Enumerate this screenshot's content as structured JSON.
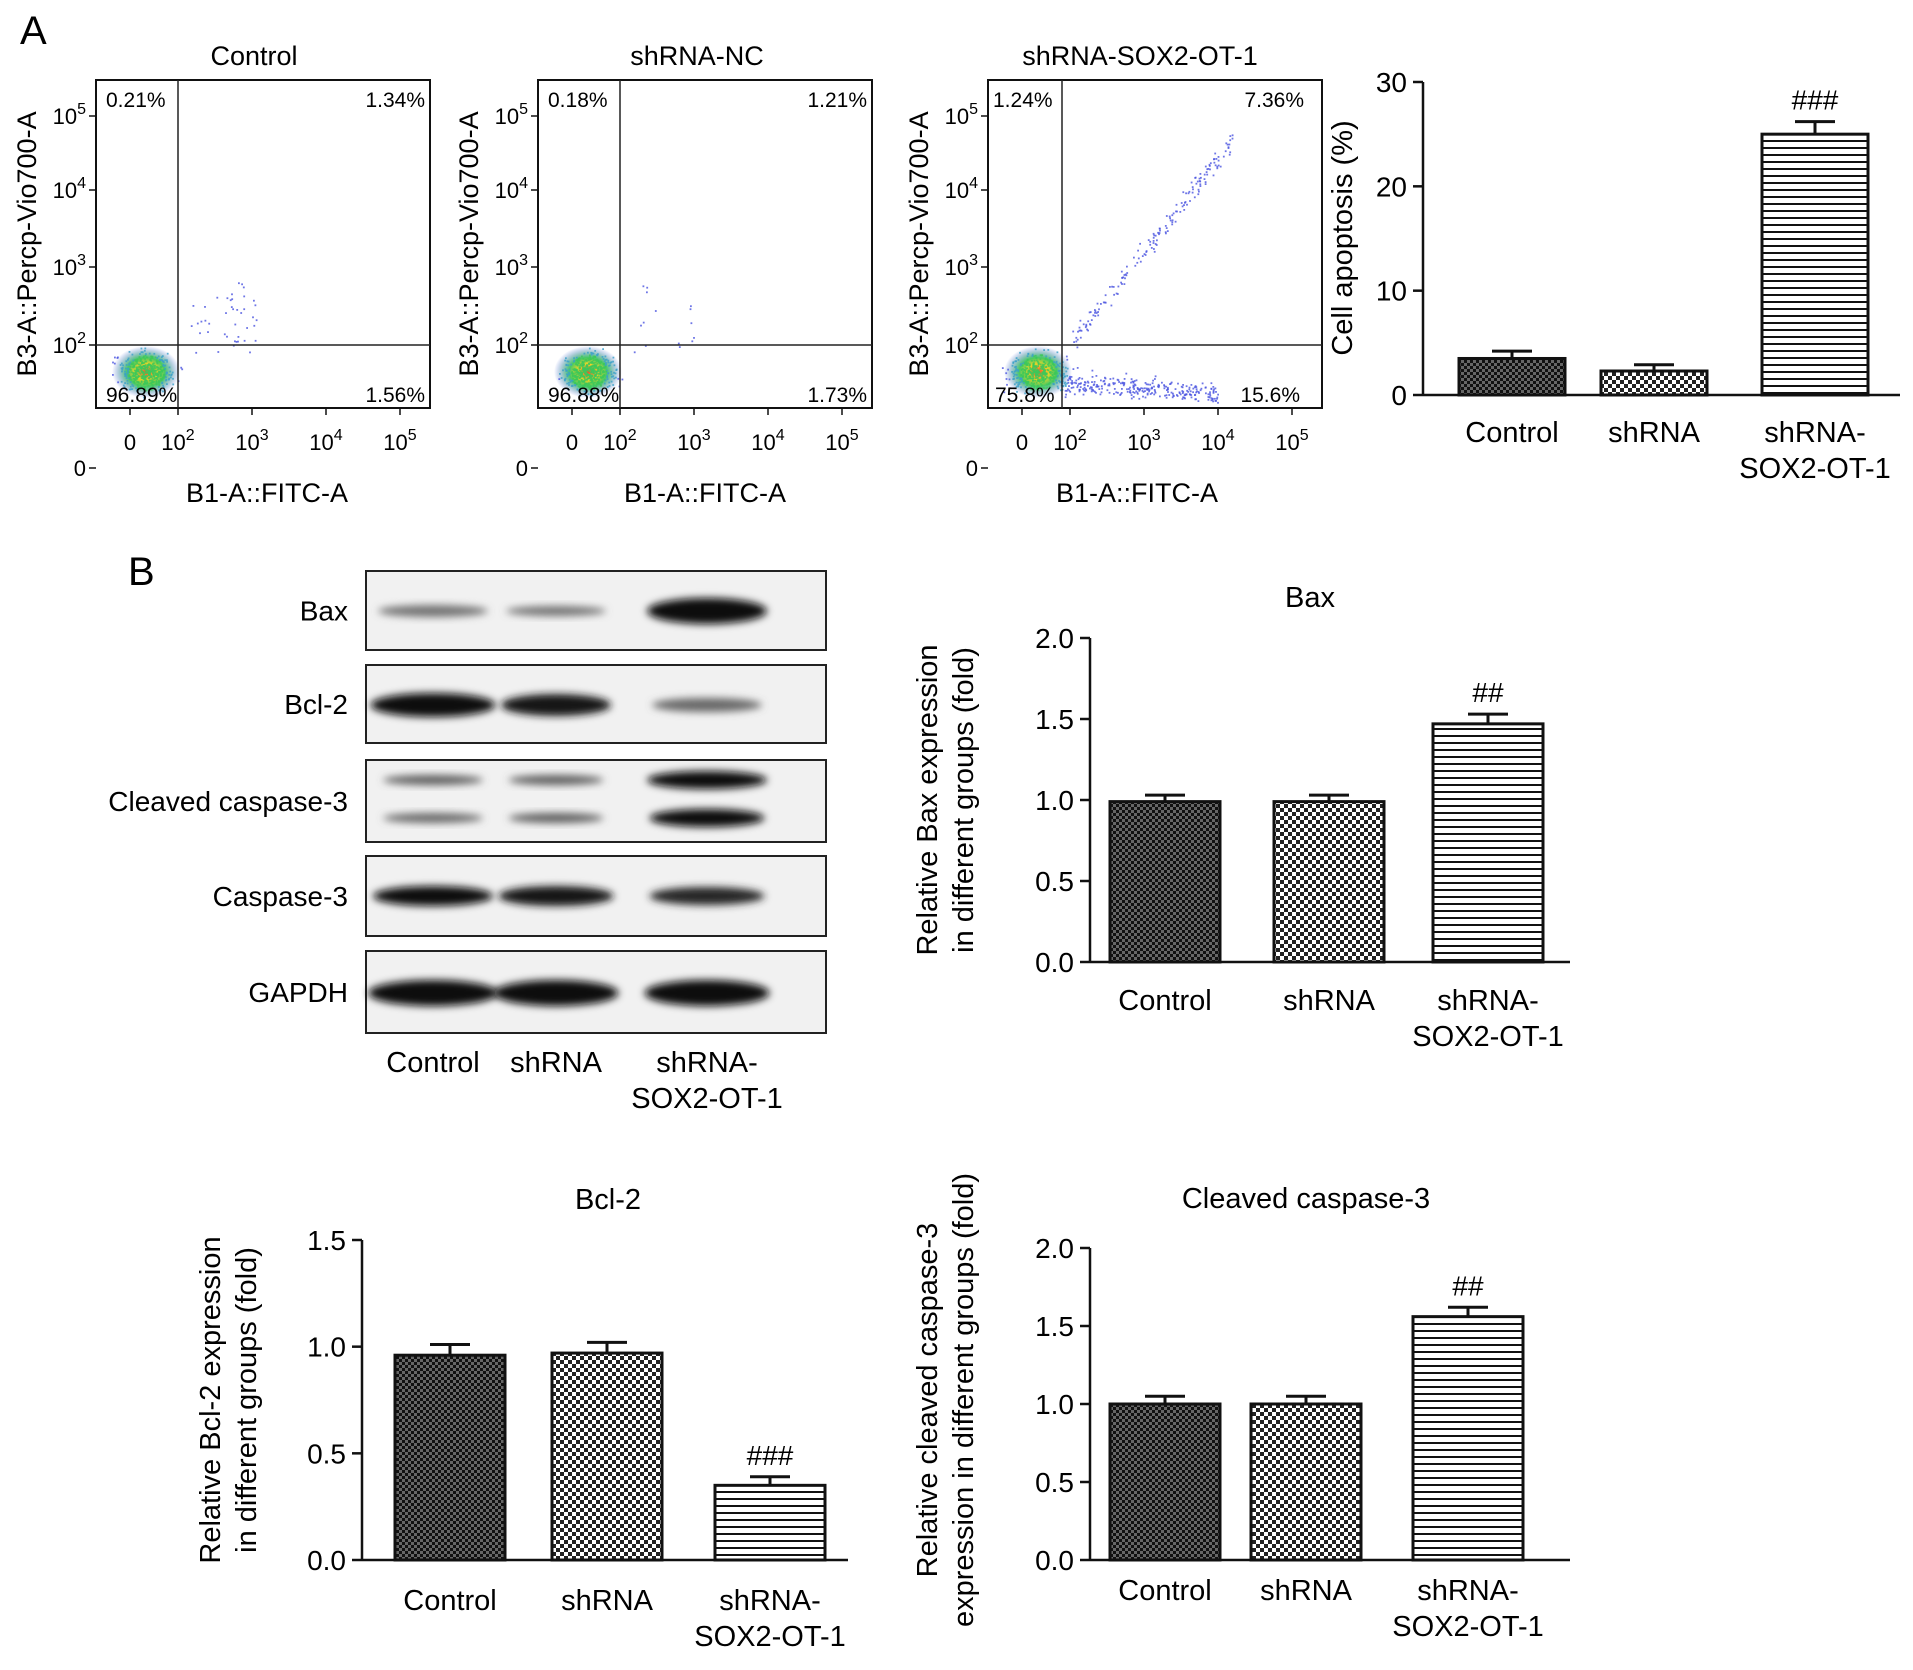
{
  "panels": {
    "A": "A",
    "B": "B"
  },
  "flow": {
    "xlabel": "B1-A::FITC-A",
    "ylabel": "B3-A::Percp-Vio700-A",
    "x_ticks": [
      "0",
      "10^2",
      "10^3",
      "10^4",
      "10^5"
    ],
    "y_ticks": [
      "0",
      "10^2",
      "10^3",
      "10^4",
      "10^5"
    ],
    "plots": [
      {
        "title": "Control",
        "q_ul": "0.21%",
        "q_ur": "1.34%",
        "q_ll": "96.89%",
        "q_lr": "1.56%"
      },
      {
        "title": "shRNA-NC",
        "q_ul": "0.18%",
        "q_ur": "1.21%",
        "q_ll": "96.88%",
        "q_lr": "1.73%"
      },
      {
        "title": "shRNA-SOX2-OT-1",
        "q_ul": "1.24%",
        "q_ur": "7.36%",
        "q_ll": "75.8%",
        "q_lr": "15.6%"
      }
    ]
  },
  "blot": {
    "rows": [
      "Bax",
      "Bcl-2",
      "Cleaved caspase-3",
      "Caspase-3",
      "GAPDH"
    ],
    "lanes": [
      [
        "Control"
      ],
      [
        "shRNA"
      ],
      [
        "shRNA-",
        "SOX2-OT-1"
      ]
    ]
  },
  "chart_data": [
    {
      "type": "bar",
      "title": "",
      "ylabel": "Cell apoptosis (%)",
      "categories": [
        [
          "Control"
        ],
        [
          "shRNA"
        ],
        [
          "shRNA-",
          "SOX2-OT-1"
        ]
      ],
      "values": [
        3.5,
        2.3,
        25.0
      ],
      "errors": [
        0.7,
        0.6,
        1.2
      ],
      "annotations": [
        "",
        "",
        "###"
      ],
      "ylim": [
        0,
        30
      ],
      "yticks": [
        0,
        10,
        20,
        30
      ],
      "ytick_labels": [
        "0",
        "10",
        "20",
        "30"
      ]
    },
    {
      "type": "bar",
      "title": "Bax",
      "ylabel": [
        "Relative Bax expression",
        "in different groups (fold)"
      ],
      "categories": [
        [
          "Control"
        ],
        [
          "shRNA"
        ],
        [
          "shRNA-",
          "SOX2-OT-1"
        ]
      ],
      "values": [
        0.99,
        0.99,
        1.47
      ],
      "errors": [
        0.04,
        0.04,
        0.06
      ],
      "annotations": [
        "",
        "",
        "##"
      ],
      "ylim": [
        0,
        2.0
      ],
      "yticks": [
        0,
        0.5,
        1.0,
        1.5,
        2.0
      ],
      "ytick_labels": [
        "0.0",
        "0.5",
        "1.0",
        "1.5",
        "2.0"
      ]
    },
    {
      "type": "bar",
      "title": "Bcl-2",
      "ylabel": [
        "Relative Bcl-2 expression",
        "in different groups (fold)"
      ],
      "categories": [
        [
          "Control"
        ],
        [
          "shRNA"
        ],
        [
          "shRNA-",
          "SOX2-OT-1"
        ]
      ],
      "values": [
        0.96,
        0.97,
        0.35
      ],
      "errors": [
        0.05,
        0.05,
        0.04
      ],
      "annotations": [
        "",
        "",
        "###"
      ],
      "ylim": [
        0,
        1.5
      ],
      "yticks": [
        0,
        0.5,
        1.0,
        1.5
      ],
      "ytick_labels": [
        "0.0",
        "0.5",
        "1.0",
        "1.5"
      ]
    },
    {
      "type": "bar",
      "title": "Cleaved caspase-3",
      "ylabel": [
        "Relative cleaved caspase-3",
        "expression in different groups (fold)"
      ],
      "categories": [
        [
          "Control"
        ],
        [
          "shRNA"
        ],
        [
          "shRNA-",
          "SOX2-OT-1"
        ]
      ],
      "values": [
        1.0,
        1.0,
        1.56
      ],
      "errors": [
        0.05,
        0.05,
        0.06
      ],
      "annotations": [
        "",
        "",
        "##"
      ],
      "ylim": [
        0,
        2.0
      ],
      "yticks": [
        0,
        0.5,
        1.0,
        1.5,
        2.0
      ],
      "ytick_labels": [
        "0.0",
        "0.5",
        "1.0",
        "1.5",
        "2.0"
      ]
    }
  ],
  "colors": {
    "axis": "#111111",
    "bar_fill": "#ffffff",
    "scatter_blue": "#4a54e0",
    "scatter_core": "#3cc85a"
  }
}
